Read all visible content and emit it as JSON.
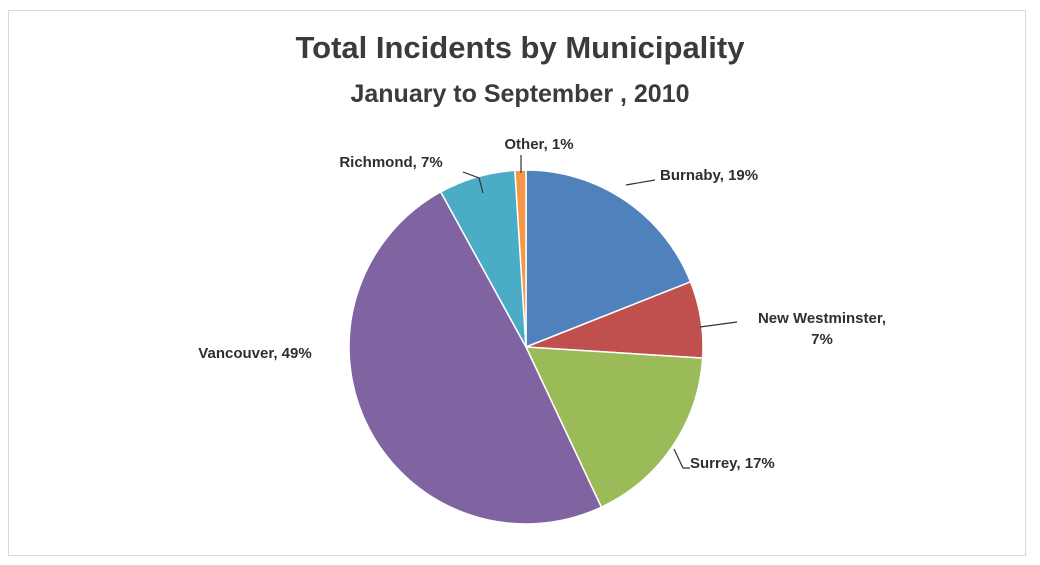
{
  "chart_data": {
    "type": "pie",
    "title": "Total Incidents by Municipality",
    "subtitle": "January to September , 2010",
    "slices": [
      {
        "name": "Burnaby",
        "value": 19,
        "label": "Burnaby, 19%",
        "color": "#4f81bd"
      },
      {
        "name": "New Westminster",
        "value": 7,
        "label_lines": [
          "New Westminster,",
          "7%"
        ],
        "color": "#c0504d"
      },
      {
        "name": "Surrey",
        "value": 17,
        "label": "Surrey, 17%",
        "color": "#9bbb59"
      },
      {
        "name": "Vancouver",
        "value": 49,
        "label": "Vancouver, 49%",
        "color": "#8064a2"
      },
      {
        "name": "Richmond",
        "value": 7,
        "label": "Richmond, 7%",
        "color": "#4bacc6"
      },
      {
        "name": "Other",
        "value": 1,
        "label": "Other, 1%",
        "color": "#f79646"
      }
    ],
    "start_angle_deg": 0,
    "direction": "clockwise",
    "legend": "none",
    "data_labels": "outside with leader lines"
  }
}
